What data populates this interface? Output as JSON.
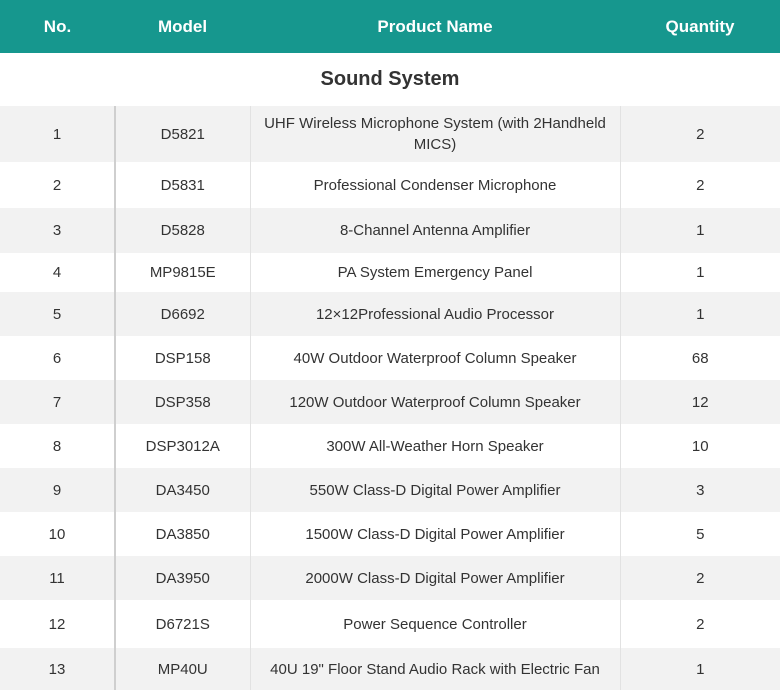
{
  "table": {
    "header": [
      "No.",
      "Model",
      "Product Name",
      "Quantity"
    ],
    "section": "Sound System",
    "rows": [
      [
        "1",
        "D5821",
        "UHF Wireless Microphone System (with 2Handheld MICS)",
        "2"
      ],
      [
        "2",
        "D5831",
        "Professional Condenser Microphone",
        "2"
      ],
      [
        "3",
        "D5828",
        "8-Channel Antenna Amplifier",
        "1"
      ],
      [
        "4",
        "MP9815E",
        "PA System Emergency Panel",
        "1"
      ],
      [
        "5",
        "D6692",
        "12×12Professional Audio Processor",
        "1"
      ],
      [
        "6",
        "DSP158",
        "40W Outdoor Waterproof Column Speaker",
        "68"
      ],
      [
        "7",
        "DSP358",
        "120W Outdoor Waterproof Column Speaker",
        "12"
      ],
      [
        "8",
        "DSP3012A",
        "300W All-Weather Horn Speaker",
        "10"
      ],
      [
        "9",
        "DA3450",
        "550W Class-D Digital Power Amplifier",
        "3"
      ],
      [
        "10",
        "DA3850",
        "1500W Class-D Digital Power Amplifier",
        "5"
      ],
      [
        "11",
        "DA3950",
        "2000W Class-D Digital Power Amplifier",
        "2"
      ],
      [
        "12",
        "D6721S",
        "Power Sequence Controller",
        "2"
      ],
      [
        "13",
        "MP40U",
        "40U 19\" Floor Stand Audio Rack with Electric Fan",
        "1"
      ]
    ]
  }
}
